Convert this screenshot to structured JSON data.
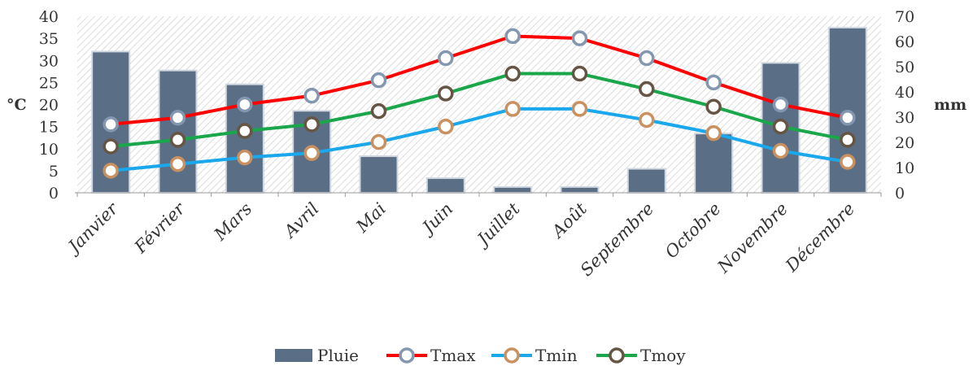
{
  "chart_data": {
    "type": "bar+line",
    "categories": [
      "Janvier",
      "Février",
      "Mars",
      "Avril",
      "Mai",
      "Juin",
      "Juillet",
      "Août",
      "Septembre",
      "Octobre",
      "Novembre",
      "Décembre"
    ],
    "left_axis": {
      "label": "°C",
      "ylim": [
        0,
        40
      ],
      "ticks": [
        0,
        5,
        10,
        15,
        20,
        25,
        30,
        35,
        40
      ]
    },
    "right_axis": {
      "label": "mm",
      "ylim": [
        0,
        70
      ],
      "ticks": [
        0,
        10,
        20,
        30,
        40,
        50,
        60,
        70
      ]
    },
    "bars": {
      "name": "Pluie",
      "axis": "right",
      "color": "#5a6e86",
      "values": [
        56,
        48.5,
        43,
        32.5,
        14.5,
        5.8,
        2.3,
        2.3,
        9.5,
        23.5,
        51.5,
        65.5
      ]
    },
    "series": [
      {
        "name": "Tmax",
        "axis": "left",
        "color": "#ff0000",
        "marker_edge": "#8497b0",
        "values": [
          15.5,
          17,
          20,
          22,
          25.5,
          30.5,
          35.5,
          35,
          30.5,
          25,
          20,
          17
        ]
      },
      {
        "name": "Tmin",
        "axis": "left",
        "color": "#1aa7ec",
        "marker_edge": "#c99060",
        "values": [
          5,
          6.5,
          8,
          9,
          11.5,
          15,
          19,
          19,
          16.5,
          13.5,
          9.5,
          7
        ]
      },
      {
        "name": "Tmoy",
        "axis": "left",
        "color": "#1aa64a",
        "marker_edge": "#665544",
        "values": [
          10.5,
          12,
          14,
          15.5,
          18.5,
          22.5,
          27,
          27,
          23.5,
          19.5,
          15,
          12
        ]
      }
    ],
    "background": "hatched",
    "legend_position": "bottom"
  }
}
